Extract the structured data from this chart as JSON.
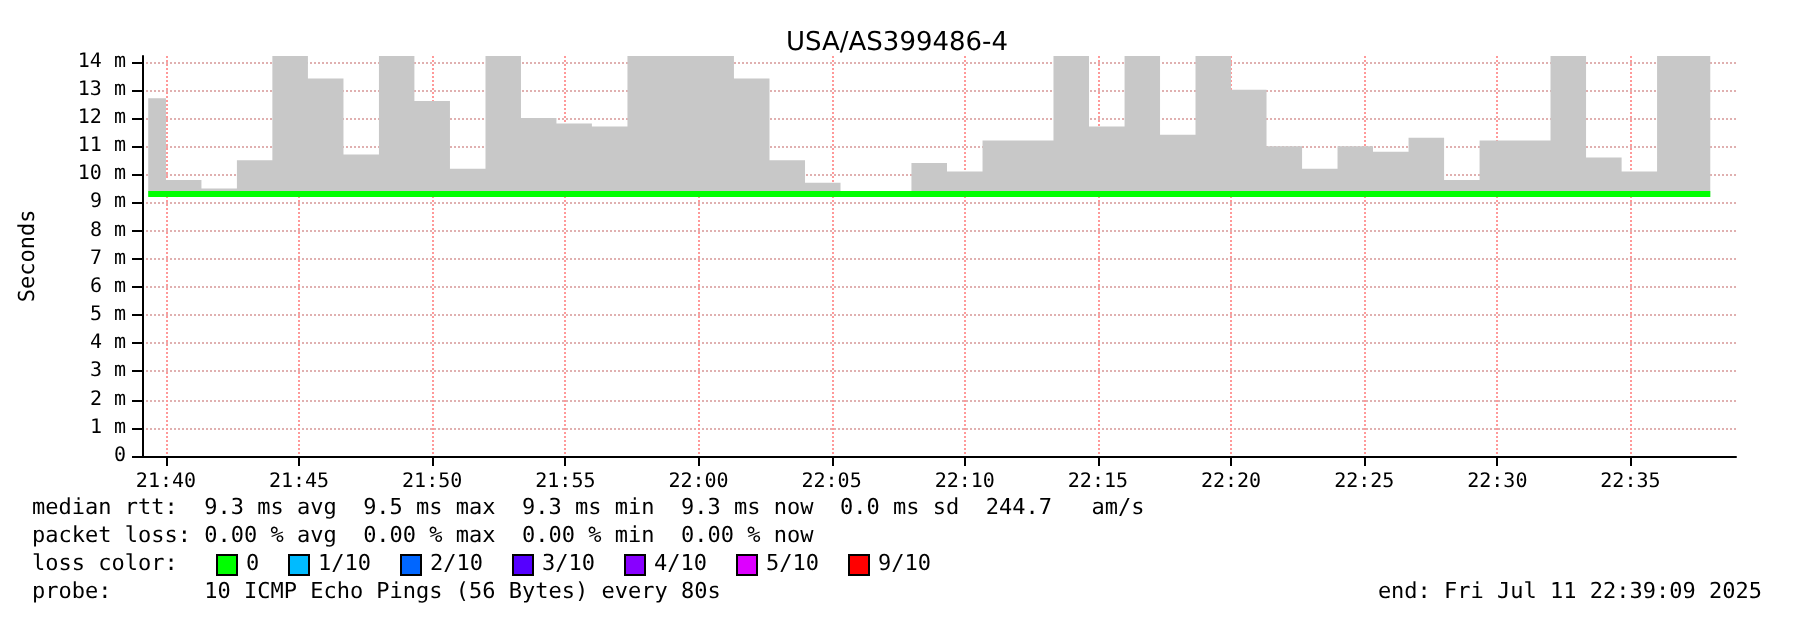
{
  "chart_data": {
    "type": "step",
    "title": "USA/AS399486-4",
    "ylabel": "Seconds",
    "x": [
      21.6556,
      21.6778,
      21.7,
      21.7222,
      21.7444,
      21.7667,
      21.7889,
      21.8111,
      21.8333,
      21.8556,
      21.8778,
      21.9,
      21.9222,
      21.9444,
      21.9667,
      21.9889,
      22.0111,
      22.0333,
      22.0556,
      22.0778,
      22.1,
      22.1222,
      22.1444,
      22.1667,
      22.1889,
      22.2111,
      22.2333,
      22.2556,
      22.2778,
      22.3,
      22.3222,
      22.3444,
      22.3667,
      22.3889,
      22.4111,
      22.4333,
      22.4556,
      22.4778,
      22.5,
      22.5222,
      22.5444,
      22.5667,
      22.5889,
      22.6111,
      22.6333
    ],
    "series": [
      {
        "color": "#00ff00",
        "values": [
          9.3,
          9.3,
          9.3,
          9.3,
          9.3,
          9.3,
          9.3,
          9.3,
          9.3,
          9.3,
          9.3,
          9.3,
          9.3,
          9.3,
          9.3,
          9.3,
          9.3,
          9.3,
          9.3,
          9.3,
          9.3,
          9.3,
          9.3,
          9.3,
          9.3,
          9.3,
          9.3,
          9.3,
          9.3,
          9.3,
          9.3,
          9.3,
          9.3,
          9.3,
          9.3,
          9.3,
          9.3,
          9.3,
          9.3,
          9.3,
          9.3,
          9.3,
          9.3,
          9.3,
          9.3
        ],
        "lower": [
          9.2,
          9.2,
          9.2,
          9.2,
          9.2,
          9.2,
          9.2,
          9.2,
          9.2,
          9.2,
          9.2,
          9.2,
          9.2,
          9.2,
          9.2,
          9.2,
          9.2,
          9.2,
          9.2,
          9.2,
          9.2,
          9.2,
          9.2,
          9.2,
          9.2,
          9.2,
          9.2,
          9.2,
          9.2,
          9.2,
          9.2,
          9.2,
          9.2,
          9.2,
          9.2,
          9.2,
          9.2,
          9.2,
          9.2,
          9.2,
          9.2,
          9.2,
          9.2,
          9.2,
          9.2
        ],
        "upper": [
          12.7,
          9.8,
          9.5,
          10.5,
          14.2,
          13.4,
          10.7,
          14.2,
          12.6,
          10.2,
          14.2,
          12.0,
          11.8,
          11.7,
          14.2,
          14.2,
          14.2,
          13.4,
          10.5,
          9.7,
          9.4,
          9.4,
          10.4,
          10.1,
          11.2,
          11.2,
          14.2,
          11.7,
          14.2,
          11.4,
          14.2,
          13.0,
          11.0,
          10.2,
          11.0,
          10.8,
          11.3,
          9.8,
          11.2,
          11.2,
          14.2,
          10.6,
          10.1,
          14.2,
          14.2
        ]
      }
    ],
    "xlim": [
      21.6517,
      22.6494
    ],
    "xticks": [
      {
        "value": 21.6667,
        "label": "21:40"
      },
      {
        "value": 21.75,
        "label": "21:45"
      },
      {
        "value": 21.8333,
        "label": "21:50"
      },
      {
        "value": 21.9167,
        "label": "21:55"
      },
      {
        "value": 22,
        "label": "22:00"
      },
      {
        "value": 22.0833,
        "label": "22:05"
      },
      {
        "value": 22.1667,
        "label": "22:10"
      },
      {
        "value": 22.25,
        "label": "22:15"
      },
      {
        "value": 22.3333,
        "label": "22:20"
      },
      {
        "value": 22.4167,
        "label": "22:25"
      },
      {
        "value": 22.5,
        "label": "22:30"
      },
      {
        "value": 22.5833,
        "label": "22:35"
      }
    ],
    "ylim": [
      0,
      14.2
    ],
    "yticks": [
      0,
      {
        "value": 1,
        "label": "1 m"
      },
      {
        "value": 2,
        "label": "2 m"
      },
      {
        "value": 3,
        "label": "3 m"
      },
      {
        "value": 4,
        "label": "4 m"
      },
      {
        "value": 5,
        "label": "5 m"
      },
      {
        "value": 6,
        "label": "6 m"
      },
      {
        "value": 7,
        "label": "7 m"
      },
      {
        "value": 8,
        "label": "8 m"
      },
      {
        "value": 9,
        "label": "9 m"
      },
      {
        "value": 10,
        "label": "10 m"
      },
      {
        "value": 11,
        "label": "11 m"
      },
      {
        "value": 12,
        "label": "12 m"
      },
      {
        "value": 13,
        "label": "13 m"
      },
      {
        "value": 14,
        "label": "14 m"
      }
    ],
    "grid": true,
    "marker": "none",
    "line_style": "solid",
    "annotations": [
      "median rtt:  9.3 ms avg  9.5 ms max  9.3 ms min  9.3 ms now  0.0 ms sd  244.7   am/s",
      "packet loss: 0.00 % avg  0.00 % max  0.00 % min  0.00 % now",
      "loss color:",
      "0",
      "1/10",
      "2/10",
      "3/10",
      "4/10",
      "5/10",
      "9/10",
      "probe:       10 ICMP Echo Pings (56 Bytes) every 80s",
      "end: Fri Jul 11 22:39:09 2025"
    ]
  }
}
